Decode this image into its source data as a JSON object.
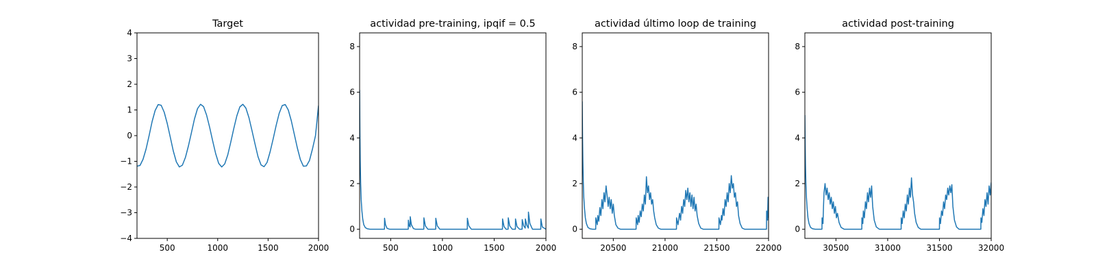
{
  "chart_data": [
    {
      "type": "line",
      "title": "Target",
      "xlim": [
        200,
        2000
      ],
      "ylim": [
        -4,
        4
      ],
      "xticks": [
        500,
        1000,
        1500,
        2000
      ],
      "yticks": [
        -4,
        -3,
        -2,
        -1,
        0,
        1,
        2,
        3,
        4
      ],
      "xtick_labels": [
        "500",
        "1000",
        "1500",
        "2000"
      ],
      "ytick_labels": [
        "−4",
        "−3",
        "−2",
        "−1",
        "0",
        "1",
        "2",
        "3",
        "4"
      ],
      "series": [
        {
          "color": "#1f77b4",
          "x": [
            200,
            230,
            260,
            290,
            320,
            350,
            380,
            410,
            440,
            470,
            500,
            530,
            560,
            590,
            620,
            650,
            680,
            710,
            740,
            770,
            800,
            830,
            860,
            890,
            920,
            950,
            980,
            1010,
            1040,
            1070,
            1100,
            1130,
            1160,
            1190,
            1220,
            1250,
            1280,
            1310,
            1340,
            1370,
            1400,
            1430,
            1460,
            1490,
            1520,
            1550,
            1580,
            1610,
            1640,
            1670,
            1700,
            1730,
            1760,
            1790,
            1820,
            1850,
            1880,
            1910,
            1940,
            1970,
            2000
          ],
          "y": [
            -1.19,
            -1.16,
            -0.92,
            -0.52,
            0.0,
            0.55,
            0.98,
            1.21,
            1.18,
            0.91,
            0.47,
            -0.06,
            -0.6,
            -1.02,
            -1.22,
            -1.15,
            -0.85,
            -0.4,
            0.12,
            0.65,
            1.05,
            1.22,
            1.13,
            0.8,
            0.33,
            -0.2,
            -0.7,
            -1.08,
            -1.22,
            -1.1,
            -0.75,
            -0.25,
            0.28,
            0.77,
            1.12,
            1.22,
            1.07,
            0.7,
            0.2,
            -0.32,
            -0.82,
            -1.14,
            -1.21,
            -1.04,
            -0.63,
            -0.13,
            0.4,
            0.87,
            1.17,
            1.21,
            1.0,
            0.58,
            0.05,
            -0.48,
            -0.93,
            -1.19,
            -1.18,
            -0.97,
            -0.52,
            0.0,
            1.17
          ]
        }
      ]
    },
    {
      "type": "line",
      "title": "actividad pre-training, ipqif = 0.5",
      "xlim": [
        200,
        2000
      ],
      "ylim": [
        -0.4,
        8.6
      ],
      "xticks": [
        500,
        1000,
        1500,
        2000
      ],
      "yticks": [
        0,
        2,
        4,
        6,
        8
      ],
      "xtick_labels": [
        "500",
        "1000",
        "1500",
        "2000"
      ],
      "ytick_labels": [
        "0",
        "2",
        "4",
        "6",
        "8"
      ],
      "series": [
        {
          "color": "#1f77b4",
          "x": [
            200,
            203,
            206,
            210,
            215,
            222,
            230,
            240,
            255,
            275,
            300,
            440,
            441,
            450,
            465,
            490,
            670,
            671,
            680,
            688,
            689,
            700,
            720,
            740,
            820,
            821,
            835,
            860,
            935,
            936,
            950,
            975,
            1240,
            1241,
            1255,
            1280,
            1580,
            1581,
            1595,
            1615,
            1635,
            1636,
            1650,
            1675,
            1705,
            1706,
            1720,
            1745,
            1770,
            1771,
            1785,
            1800,
            1801,
            1815,
            1830,
            1831,
            1845,
            1870,
            1950,
            1951,
            1965,
            2000
          ],
          "y": [
            6.1,
            4.2,
            3.0,
            2.0,
            1.3,
            0.8,
            0.45,
            0.2,
            0.07,
            0.02,
            0.0,
            0.0,
            0.48,
            0.2,
            0.04,
            0.0,
            0.0,
            0.4,
            0.15,
            0.1,
            0.55,
            0.2,
            0.03,
            0.0,
            0.0,
            0.5,
            0.15,
            0.0,
            0.0,
            0.48,
            0.15,
            0.0,
            0.0,
            0.48,
            0.15,
            0.0,
            0.0,
            0.45,
            0.12,
            0.0,
            0.0,
            0.5,
            0.15,
            0.0,
            0.0,
            0.45,
            0.12,
            0.0,
            0.0,
            0.42,
            0.15,
            0.05,
            0.45,
            0.18,
            0.05,
            0.75,
            0.25,
            0.0,
            0.0,
            0.45,
            0.1,
            0.0
          ]
        }
      ]
    },
    {
      "type": "line",
      "title": "actividad último loop de training",
      "xlim": [
        20200,
        22000
      ],
      "ylim": [
        -0.4,
        8.6
      ],
      "xticks": [
        20500,
        21000,
        21500,
        22000
      ],
      "yticks": [
        0,
        2,
        4,
        6,
        8
      ],
      "xtick_labels": [
        "20500",
        "21000",
        "21500",
        "22000"
      ],
      "ytick_labels": [
        "0",
        "2",
        "4",
        "6",
        "8"
      ],
      "series": [
        {
          "color": "#1f77b4",
          "x": [
            20200,
            20203,
            20206,
            20210,
            20215,
            20222,
            20230,
            20240,
            20255,
            20275,
            20300,
            20330,
            20331,
            20345,
            20350,
            20360,
            20370,
            20380,
            20390,
            20400,
            20410,
            20420,
            20430,
            20440,
            20450,
            20460,
            20470,
            20480,
            20490,
            20500,
            20510,
            20525,
            20545,
            20570,
            20720,
            20721,
            20735,
            20740,
            20750,
            20760,
            20770,
            20780,
            20790,
            20800,
            20810,
            20820,
            20830,
            20840,
            20850,
            20860,
            20870,
            20880,
            20890,
            20900,
            20915,
            20935,
            20960,
            21110,
            21111,
            21125,
            21140,
            21150,
            21160,
            21170,
            21180,
            21190,
            21200,
            21210,
            21220,
            21230,
            21240,
            21250,
            21260,
            21270,
            21280,
            21290,
            21300,
            21310,
            21325,
            21345,
            21370,
            21520,
            21521,
            21535,
            21545,
            21550,
            21560,
            21570,
            21580,
            21590,
            21600,
            21610,
            21620,
            21630,
            21640,
            21650,
            21660,
            21670,
            21680,
            21690,
            21700,
            21710,
            21725,
            21745,
            21770,
            21980,
            21981,
            21990,
            21995,
            22000
          ],
          "y": [
            5.6,
            4.0,
            3.0,
            2.1,
            1.4,
            0.9,
            0.5,
            0.25,
            0.08,
            0.02,
            0.0,
            0.0,
            0.5,
            0.2,
            0.6,
            0.35,
            0.95,
            0.6,
            1.3,
            0.9,
            1.6,
            1.2,
            1.9,
            1.5,
            1.0,
            1.4,
            0.9,
            1.3,
            0.7,
            1.1,
            0.6,
            0.2,
            0.05,
            0.0,
            0.0,
            0.5,
            0.2,
            0.6,
            0.3,
            0.8,
            0.55,
            1.1,
            0.8,
            1.5,
            1.1,
            2.3,
            1.6,
            1.9,
            1.3,
            1.6,
            1.1,
            1.3,
            0.8,
            0.5,
            0.2,
            0.05,
            0.0,
            0.0,
            0.5,
            0.2,
            0.7,
            0.4,
            1.0,
            0.7,
            1.3,
            1.0,
            1.7,
            1.3,
            1.8,
            1.2,
            1.6,
            1.0,
            1.5,
            0.9,
            1.4,
            0.8,
            1.1,
            0.6,
            0.25,
            0.05,
            0.0,
            0.0,
            0.5,
            0.2,
            0.6,
            0.4,
            0.9,
            0.6,
            1.3,
            1.0,
            1.6,
            1.2,
            2.0,
            1.6,
            2.35,
            1.8,
            2.0,
            1.4,
            1.6,
            1.0,
            1.2,
            0.6,
            0.25,
            0.05,
            0.0,
            0.0,
            0.8,
            0.4,
            1.4,
            0.5
          ]
        }
      ]
    },
    {
      "type": "line",
      "title": "actividad post-training",
      "xlim": [
        30200,
        32000
      ],
      "ylim": [
        -0.4,
        8.6
      ],
      "xticks": [
        30500,
        31000,
        31500,
        32000
      ],
      "yticks": [
        0,
        2,
        4,
        6,
        8
      ],
      "xtick_labels": [
        "30500",
        "31000",
        "31500",
        "32000"
      ],
      "ytick_labels": [
        "0",
        "2",
        "4",
        "6",
        "8"
      ],
      "series": [
        {
          "color": "#1f77b4",
          "x": [
            30200,
            30203,
            30206,
            30210,
            30215,
            30222,
            30230,
            30240,
            30255,
            30275,
            30300,
            30365,
            30366,
            30375,
            30380,
            30385,
            30395,
            30405,
            30415,
            30425,
            30435,
            30445,
            30455,
            30465,
            30475,
            30485,
            30495,
            30505,
            30515,
            30530,
            30550,
            30580,
            30750,
            30751,
            30760,
            30765,
            30775,
            30785,
            30795,
            30805,
            30815,
            30825,
            30835,
            30845,
            30855,
            30870,
            30890,
            30920,
            31130,
            31131,
            31140,
            31150,
            31160,
            31170,
            31180,
            31190,
            31200,
            31210,
            31220,
            31230,
            31240,
            31250,
            31260,
            31275,
            31295,
            31320,
            31500,
            31501,
            31510,
            31520,
            31530,
            31540,
            31550,
            31560,
            31570,
            31580,
            31590,
            31600,
            31610,
            31620,
            31630,
            31645,
            31665,
            31690,
            31900,
            31901,
            31910,
            31920,
            31930,
            31940,
            31950,
            31960,
            31970,
            31980,
            31990,
            32000
          ],
          "y": [
            5.0,
            3.7,
            2.8,
            2.0,
            1.4,
            0.9,
            0.5,
            0.25,
            0.08,
            0.02,
            0.0,
            0.0,
            0.5,
            0.25,
            1.0,
            1.6,
            2.0,
            1.5,
            1.8,
            1.3,
            1.6,
            1.1,
            1.4,
            0.9,
            1.2,
            0.7,
            1.0,
            0.5,
            0.7,
            0.3,
            0.08,
            0.0,
            0.0,
            0.5,
            0.25,
            0.8,
            0.5,
            1.2,
            0.9,
            1.6,
            1.2,
            1.8,
            1.4,
            1.9,
            1.0,
            0.4,
            0.1,
            0.0,
            0.0,
            0.5,
            0.25,
            0.8,
            0.5,
            1.1,
            0.8,
            1.5,
            1.1,
            1.8,
            1.4,
            2.25,
            1.5,
            1.2,
            0.7,
            0.3,
            0.08,
            0.0,
            0.0,
            0.5,
            0.25,
            0.8,
            0.6,
            1.2,
            0.9,
            1.5,
            1.3,
            1.8,
            1.5,
            1.9,
            1.6,
            1.95,
            1.0,
            0.4,
            0.1,
            0.0,
            0.0,
            0.5,
            0.3,
            0.9,
            0.6,
            1.3,
            1.0,
            1.6,
            1.1,
            1.9,
            1.5,
            2.05
          ]
        }
      ]
    }
  ]
}
